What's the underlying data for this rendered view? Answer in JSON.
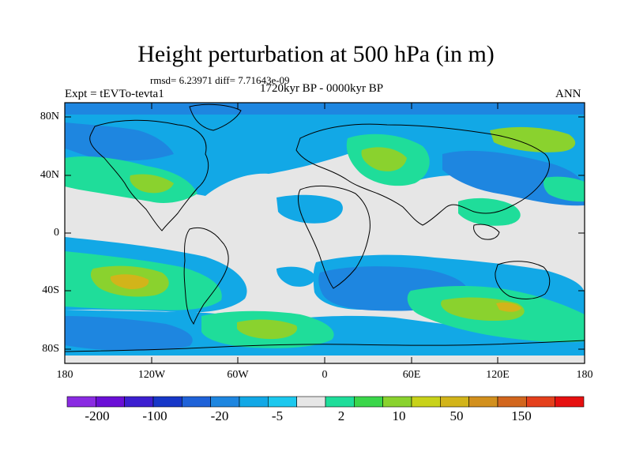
{
  "title": "Height perturbation at 500 hPa (in m)",
  "stats_line": "rmsd= 6.23971 diff= 7.71643e-09",
  "period_line": "1720kyr BP - 0000kyr BP",
  "experiment_label": "Expt = tEVTo-tevta1",
  "season_label": "ANN",
  "lat_labels": [
    "80N",
    "40N",
    "0",
    "40S",
    "80S"
  ],
  "lon_labels": [
    "180",
    "120W",
    "60W",
    "0",
    "60E",
    "120E",
    "180"
  ],
  "colorbar": {
    "colors": [
      "#8a2be2",
      "#6a0fd6",
      "#3c1fd0",
      "#1737c8",
      "#1f62d8",
      "#1e86e0",
      "#12a8e6",
      "#1cc8ee",
      "#e6e6e6",
      "#1fdd9a",
      "#3ad64a",
      "#8ad22e",
      "#c8d21a",
      "#d2b41a",
      "#d2901e",
      "#d2661e",
      "#e4401c",
      "#e61010"
    ],
    "labels": [
      "-200",
      "-100",
      "-20",
      "-5",
      "2",
      "10",
      "50",
      "150"
    ]
  },
  "field_colors": {
    "neutral": "#e6e6e6",
    "green_light": "#1fdd9a",
    "green": "#3ad64a",
    "lime": "#8ad22e",
    "yellow": "#c8d21a",
    "orange": "#d2b41a",
    "cyan": "#1cc8ee",
    "sky": "#12a8e6",
    "blue": "#1e86e0"
  }
}
